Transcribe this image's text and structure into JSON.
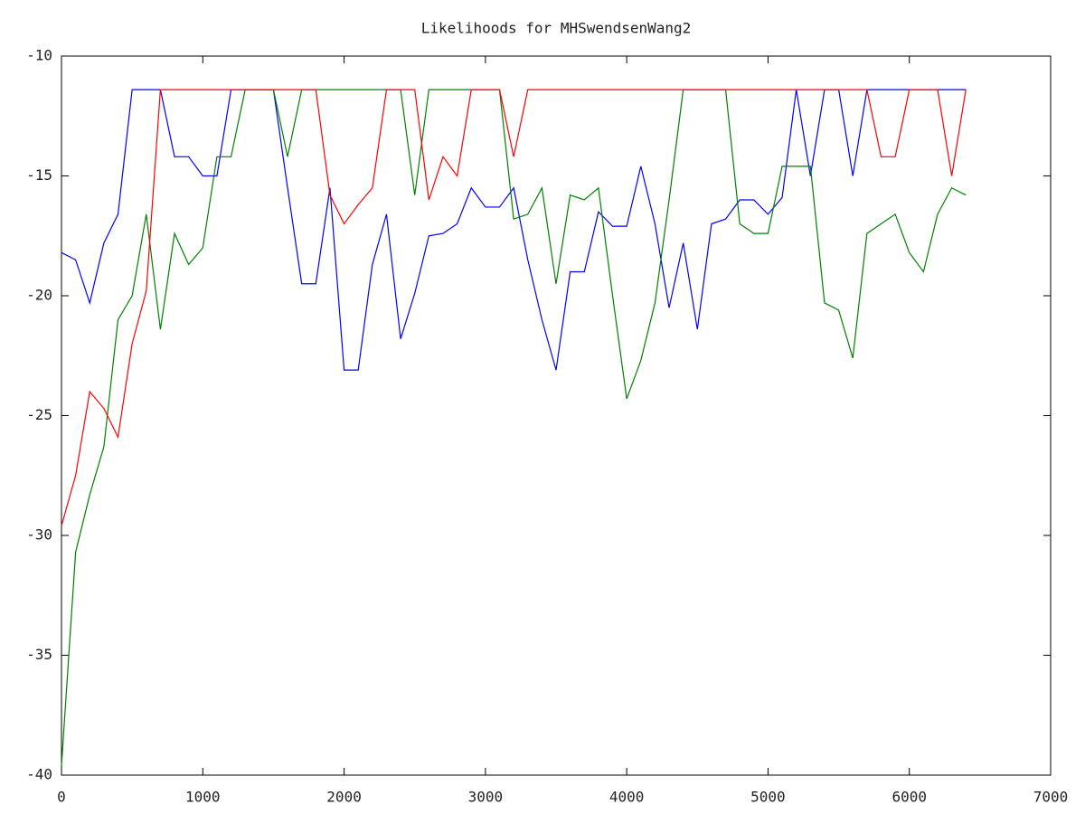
{
  "chart_data": {
    "type": "line",
    "title": "Likelihoods for MHSwendsenWang2",
    "x": [
      0,
      100,
      200,
      300,
      400,
      500,
      600,
      700,
      800,
      900,
      1000,
      1100,
      1200,
      1300,
      1400,
      1500,
      1600,
      1700,
      1800,
      1900,
      2000,
      2100,
      2200,
      2300,
      2400,
      2500,
      2600,
      2700,
      2800,
      2900,
      3000,
      3100,
      3200,
      3300,
      3400,
      3500,
      3600,
      3700,
      3800,
      3900,
      4000,
      4100,
      4200,
      4300,
      4400,
      4500,
      4600,
      4700,
      4800,
      4900,
      5000,
      5100,
      5200,
      5300,
      5400,
      5500,
      5600,
      5700,
      5800,
      5900,
      6000,
      6100,
      6200,
      6300,
      6400
    ],
    "series": [
      {
        "color": "#0000ff",
        "values": [
          -18.2,
          -18.5,
          -20.3,
          -17.8,
          -16.6,
          -11.4,
          -11.4,
          -11.4,
          -14.2,
          -14.2,
          -15.0,
          -15.0,
          -11.4,
          -11.4,
          -11.4,
          -11.4,
          -15.5,
          -19.5,
          -19.5,
          -15.5,
          -23.1,
          -23.1,
          -18.7,
          -16.6,
          -21.8,
          -19.9,
          -17.5,
          -17.4,
          -17.0,
          -15.5,
          -16.3,
          -16.3,
          -15.5,
          -18.5,
          -21.0,
          -23.1,
          -19.0,
          -19.0,
          -16.5,
          -17.1,
          -17.1,
          -14.6,
          -17.0,
          -20.5,
          -17.8,
          -21.4,
          -17.0,
          -16.8,
          -16.0,
          -16.0,
          -16.6,
          -15.9,
          -11.4,
          -15.0,
          -11.4,
          -11.4,
          -15.0,
          -11.4,
          -11.4,
          -11.4,
          -11.4,
          -11.4,
          -11.4,
          -11.4,
          -11.4
        ]
      },
      {
        "color": "#008000",
        "values": [
          -39.6,
          -30.7,
          -28.3,
          -26.3,
          -21.0,
          -20.0,
          -16.6,
          -21.4,
          -17.4,
          -18.7,
          -18.0,
          -14.2,
          -14.2,
          -11.4,
          -11.4,
          -11.4,
          -14.2,
          -11.4,
          -11.4,
          -11.4,
          -11.4,
          -11.4,
          -11.4,
          -11.4,
          -11.4,
          -15.8,
          -11.4,
          -11.4,
          -11.4,
          -11.4,
          -11.4,
          -11.4,
          -16.8,
          -16.6,
          -15.5,
          -19.5,
          -15.8,
          -16.0,
          -15.5,
          -20.0,
          -24.3,
          -22.7,
          -20.3,
          -16.0,
          -11.4,
          -11.4,
          -11.4,
          -11.4,
          -17.0,
          -17.4,
          -17.4,
          -14.6,
          -14.6,
          -14.6,
          -20.3,
          -20.6,
          -22.6,
          -17.4,
          -17.0,
          -16.6,
          -18.2,
          -19.0,
          -16.6,
          -15.5,
          -15.8
        ]
      },
      {
        "color": "#ff0000",
        "values": [
          -29.6,
          -27.5,
          -24.0,
          -24.7,
          -25.9,
          -22.0,
          -19.8,
          -11.4,
          -11.4,
          -11.4,
          -11.4,
          -11.4,
          -11.4,
          -11.4,
          -11.4,
          -11.4,
          -11.4,
          -11.4,
          -11.4,
          -15.8,
          -17.0,
          -16.2,
          -15.5,
          -11.4,
          -11.4,
          -11.4,
          -16.0,
          -14.2,
          -15.0,
          -11.4,
          -11.4,
          -11.4,
          -14.2,
          -11.4,
          -11.4,
          -11.4,
          -11.4,
          -11.4,
          -11.4,
          -11.4,
          -11.4,
          -11.4,
          -11.4,
          -11.4,
          -11.4,
          -11.4,
          -11.4,
          -11.4,
          -11.4,
          -11.4,
          -11.4,
          -11.4,
          -11.4,
          -11.4,
          -11.4,
          -11.4,
          -11.4,
          -11.4,
          -14.2,
          -14.2,
          -11.4,
          -11.4,
          -11.4,
          -15.0,
          -11.4
        ]
      }
    ],
    "xlim": [
      0,
      7000
    ],
    "xticks": [
      0,
      1000,
      2000,
      3000,
      4000,
      5000,
      6000,
      7000
    ],
    "ylim": [
      -40,
      -10
    ],
    "yticks": [
      -40,
      -35,
      -30,
      -25,
      -20,
      -15,
      -10
    ]
  }
}
